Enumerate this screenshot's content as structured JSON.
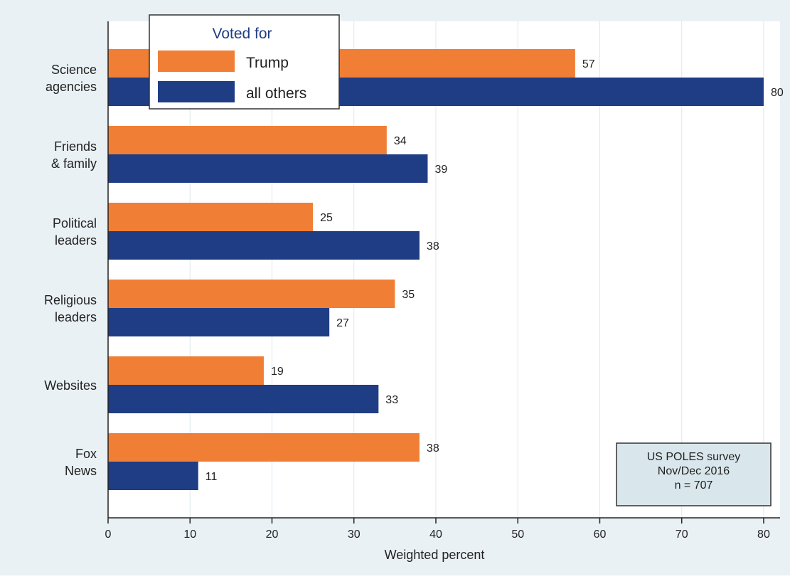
{
  "chart_data": {
    "type": "bar",
    "orientation": "horizontal",
    "categories": [
      [
        "Science",
        "agencies"
      ],
      [
        "Friends",
        "& family"
      ],
      [
        "Political",
        "leaders"
      ],
      [
        "Religious",
        "leaders"
      ],
      [
        "Websites"
      ],
      [
        "Fox",
        "News"
      ]
    ],
    "series": [
      {
        "name": "Trump",
        "color": "#f07f35",
        "values": [
          57,
          34,
          25,
          35,
          19,
          38
        ]
      },
      {
        "name": "all others",
        "color": "#1f3d85",
        "values": [
          80,
          39,
          38,
          27,
          33,
          11
        ]
      }
    ],
    "legend_title": "Voted for",
    "legend_position": "top-left",
    "xlabel": "Weighted percent",
    "xlim": [
      0,
      82
    ],
    "xticks": [
      0,
      10,
      20,
      30,
      40,
      50,
      60,
      70,
      80
    ],
    "grid": true,
    "annotation": [
      "US POLES survey",
      "Nov/Dec 2016",
      "n  =  707"
    ],
    "annotation_position": "bottom-right",
    "colors": {
      "background": "#eaf1f5",
      "plot_background": "#ffffff",
      "annotation_fill": "#d9e6ec"
    }
  }
}
